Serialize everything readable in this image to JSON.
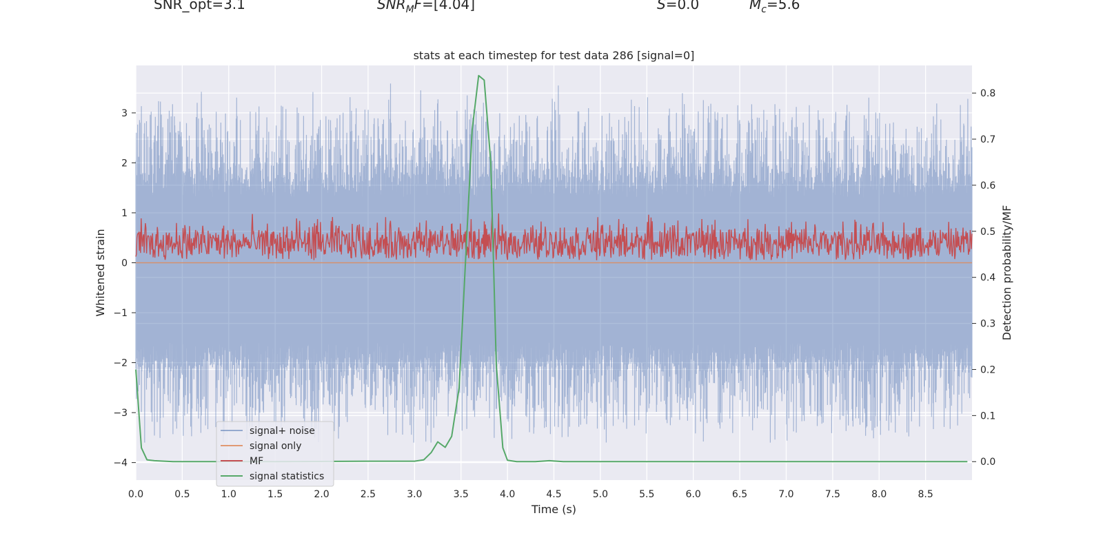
{
  "header": {
    "snr_opt": "SNR_opt=3.1",
    "snr_mf_name": "SNR",
    "snr_mf_sub": "M",
    "snr_mf_suffix": "F",
    "snr_mf_value": "=[4.04]",
    "s_name": "S",
    "s_value": "=0.0",
    "mc_name": "M",
    "mc_sub": "c",
    "mc_value": "=5.6"
  },
  "colors": {
    "plot_bg": "#eaeaf2",
    "grid": "#ffffff",
    "noise": "#4c72b0",
    "signal": "#dd8452",
    "mf": "#c44e52",
    "stat": "#55a868"
  },
  "chart_data": {
    "type": "line",
    "title": "stats at each timestep for test data 286 [signal=0]",
    "xlabel": "Time (s)",
    "ylabel": "Whitened strain",
    "y2label": "Detection probability/MF",
    "xlim": [
      0,
      9.0
    ],
    "ylim": [
      -4.35,
      3.95
    ],
    "y2lim": [
      -0.04,
      0.86
    ],
    "xticks": [
      "0.0",
      "0.5",
      "1.0",
      "1.5",
      "2.0",
      "2.5",
      "3.0",
      "3.5",
      "4.0",
      "4.5",
      "5.0",
      "5.5",
      "6.0",
      "6.5",
      "7.0",
      "7.5",
      "8.0",
      "8.5"
    ],
    "yticks": [
      "3",
      "2",
      "1",
      "0",
      "−1",
      "−2",
      "−3",
      "−4"
    ],
    "y2ticks": [
      "0.8",
      "0.7",
      "0.6",
      "0.5",
      "0.4",
      "0.3",
      "0.2",
      "0.1",
      "0.0"
    ],
    "legend_position": "lower-left",
    "series": [
      {
        "name": "signal+ noise",
        "axis": "left",
        "kind": "noise",
        "amplitude_range": [
          -3.6,
          3.6
        ]
      },
      {
        "name": "signal only",
        "axis": "left",
        "kind": "flat",
        "value": 0.0
      },
      {
        "name": "MF",
        "axis": "left",
        "kind": "mf",
        "value_range": [
          0.0,
          1.0
        ]
      },
      {
        "name": "signal statistics",
        "axis": "right",
        "kind": "line",
        "x": [
          0,
          0.06,
          0.12,
          0.2,
          0.4,
          0.8,
          1.5,
          2.5,
          3.0,
          3.1,
          3.18,
          3.25,
          3.33,
          3.4,
          3.48,
          3.56,
          3.62,
          3.69,
          3.75,
          3.82,
          3.88,
          3.95,
          4.0,
          4.1,
          4.3,
          4.45,
          4.6,
          5.5,
          7.0,
          8.5,
          8.95
        ],
        "y": [
          0.2,
          0.03,
          0.004,
          0.002,
          0.0,
          0.0,
          0.0,
          0.001,
          0.001,
          0.004,
          0.02,
          0.043,
          0.031,
          0.055,
          0.16,
          0.48,
          0.72,
          0.838,
          0.828,
          0.65,
          0.21,
          0.03,
          0.003,
          0.0,
          0.0,
          0.002,
          0.0,
          0.0,
          0.0,
          0.0,
          0.0
        ]
      }
    ]
  }
}
